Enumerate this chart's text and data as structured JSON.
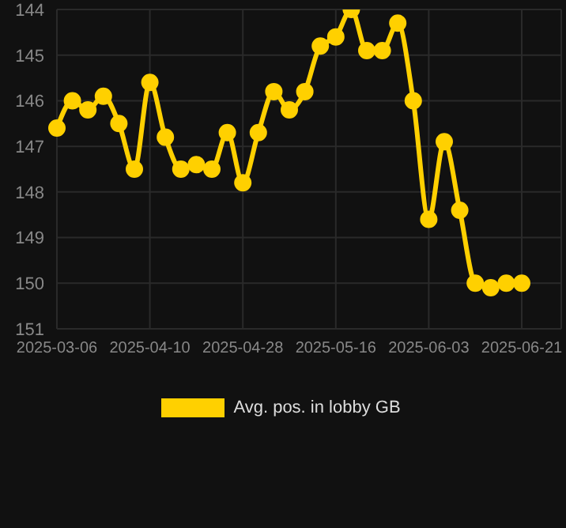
{
  "chart_data": {
    "type": "line",
    "categories": [
      "2025-03-06",
      null,
      null,
      null,
      null,
      null,
      "2025-04-10",
      null,
      null,
      null,
      null,
      null,
      "2025-04-28",
      null,
      null,
      null,
      null,
      null,
      "2025-05-16",
      null,
      null,
      null,
      null,
      null,
      "2025-06-03",
      null,
      null,
      null,
      null,
      null,
      "2025-06-21"
    ],
    "series": [
      {
        "name": "Avg. pos. in lobby GB",
        "color": "#ffd000",
        "values": [
          146.6,
          146.0,
          146.2,
          145.9,
          146.5,
          147.5,
          145.6,
          146.8,
          147.5,
          147.4,
          147.5,
          146.7,
          147.8,
          146.7,
          145.8,
          146.2,
          145.8,
          144.8,
          144.6,
          144.0,
          144.9,
          144.9,
          144.3,
          146.0,
          148.6,
          146.9,
          148.4,
          150.0,
          150.1,
          150.0,
          150.0
        ]
      }
    ],
    "ylim": [
      151,
      144
    ],
    "yticks": [
      144,
      145,
      146,
      147,
      148,
      149,
      150,
      151
    ],
    "grid": true,
    "legend": "bottom",
    "marker": "circle",
    "line_style": "solid"
  }
}
